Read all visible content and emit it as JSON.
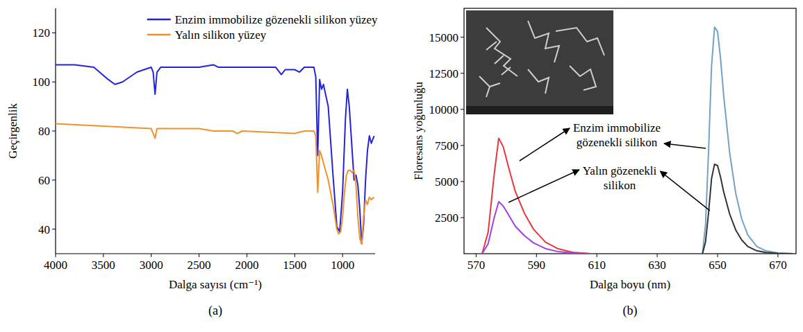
{
  "chart_data": [
    {
      "type": "line",
      "x_label": "Dalga sayısı (cm⁻¹)",
      "y_label": "Geçirgenlik",
      "panel_label": "(a)",
      "xlim": [
        4000,
        660
      ],
      "ylim": [
        30,
        130
      ],
      "xticks": [
        4000,
        3500,
        3000,
        2500,
        2000,
        1500,
        1000
      ],
      "yticks": [
        40,
        60,
        80,
        100,
        120
      ],
      "grid": false,
      "legend": "upper right",
      "series": [
        {
          "name": "Enzim immobilize gözenekli silikon yüzey",
          "color": "#2323d9",
          "x": [
            4000,
            3800,
            3600,
            3450,
            3380,
            3300,
            3150,
            3000,
            2980,
            2960,
            2940,
            2900,
            2500,
            2350,
            2300,
            2000,
            1700,
            1640,
            1600,
            1500,
            1450,
            1400,
            1300,
            1280,
            1260,
            1240,
            1220,
            1200,
            1150,
            1100,
            1060,
            1030,
            1000,
            970,
            950,
            930,
            900,
            880,
            860,
            840,
            820,
            800,
            780,
            760,
            740,
            720,
            700,
            670
          ],
          "values": [
            107,
            107,
            106,
            101,
            99,
            100,
            104,
            106,
            104,
            95,
            104,
            106,
            106,
            107,
            106,
            106,
            106,
            103,
            105,
            105,
            104,
            106,
            106,
            102,
            70,
            101,
            97,
            99,
            90,
            62,
            41,
            39,
            55,
            85,
            97,
            90,
            72,
            60,
            62,
            58,
            48,
            34,
            42,
            60,
            72,
            78,
            75,
            78
          ]
        },
        {
          "name": "Yalın silikon yüzey",
          "color": "#f0922b",
          "x": [
            4000,
            3500,
            3000,
            2980,
            2960,
            2940,
            2500,
            2350,
            2150,
            2100,
            2050,
            1500,
            1400,
            1300,
            1280,
            1260,
            1240,
            1220,
            1200,
            1150,
            1100,
            1060,
            1040,
            1020,
            1000,
            980,
            960,
            940,
            920,
            900,
            880,
            860,
            840,
            820,
            800,
            780,
            760,
            740,
            720,
            700,
            670
          ],
          "values": [
            83,
            82,
            81,
            79,
            77,
            81,
            81,
            80,
            80,
            79,
            80,
            79,
            80,
            80,
            78,
            55,
            72,
            70,
            67,
            60,
            50,
            40,
            38,
            39,
            45,
            55,
            62,
            64,
            64,
            63,
            64,
            58,
            45,
            36,
            34,
            45,
            52,
            50,
            53,
            52,
            53
          ]
        }
      ]
    },
    {
      "type": "line",
      "x_label": "Dalga boyu (nm)",
      "y_label": "Floresans yoğunluğu",
      "panel_label": "(b)",
      "xlim": [
        566,
        676
      ],
      "ylim": [
        0,
        17000
      ],
      "xticks": [
        570,
        590,
        610,
        630,
        650,
        670
      ],
      "yticks": [
        2500,
        5000,
        7500,
        10000,
        12500,
        15000
      ],
      "grid": false,
      "annotations": [
        "Enzim immobilize gözenekli silikon",
        "Yalın gözenekli silikon"
      ],
      "series": [
        {
          "color": "#e8363a",
          "x": [
            568,
            572,
            574,
            576,
            577.5,
            579,
            581,
            583,
            586,
            589,
            593,
            597,
            602,
            608,
            645
          ],
          "values": [
            0,
            0,
            1500,
            5500,
            8000,
            7400,
            5800,
            4300,
            2800,
            1700,
            800,
            350,
            100,
            0,
            0
          ]
        },
        {
          "color": "#a040e0",
          "x": [
            568,
            572,
            574,
            576,
            577.5,
            579,
            581,
            583,
            586,
            589,
            593,
            597,
            602,
            608
          ],
          "values": [
            0,
            0,
            700,
            2500,
            3600,
            3300,
            2600,
            1900,
            1250,
            750,
            350,
            150,
            50,
            0
          ]
        },
        {
          "color": "#6fa3c8",
          "x": [
            645,
            646,
            647,
            648,
            649,
            650,
            651,
            652,
            654,
            656,
            658,
            660,
            663,
            666,
            670,
            675
          ],
          "values": [
            0,
            2000,
            7000,
            13000,
            15700,
            15400,
            13500,
            11000,
            7000,
            4200,
            2400,
            1300,
            500,
            200,
            50,
            0
          ]
        },
        {
          "color": "#333333",
          "x": [
            645,
            646,
            647,
            648,
            649,
            650,
            651,
            652,
            654,
            656,
            658,
            660,
            663,
            666,
            670,
            675
          ],
          "values": [
            0,
            800,
            2800,
            5200,
            6200,
            6100,
            5300,
            4300,
            2750,
            1650,
            950,
            500,
            200,
            80,
            20,
            0
          ]
        }
      ]
    }
  ]
}
